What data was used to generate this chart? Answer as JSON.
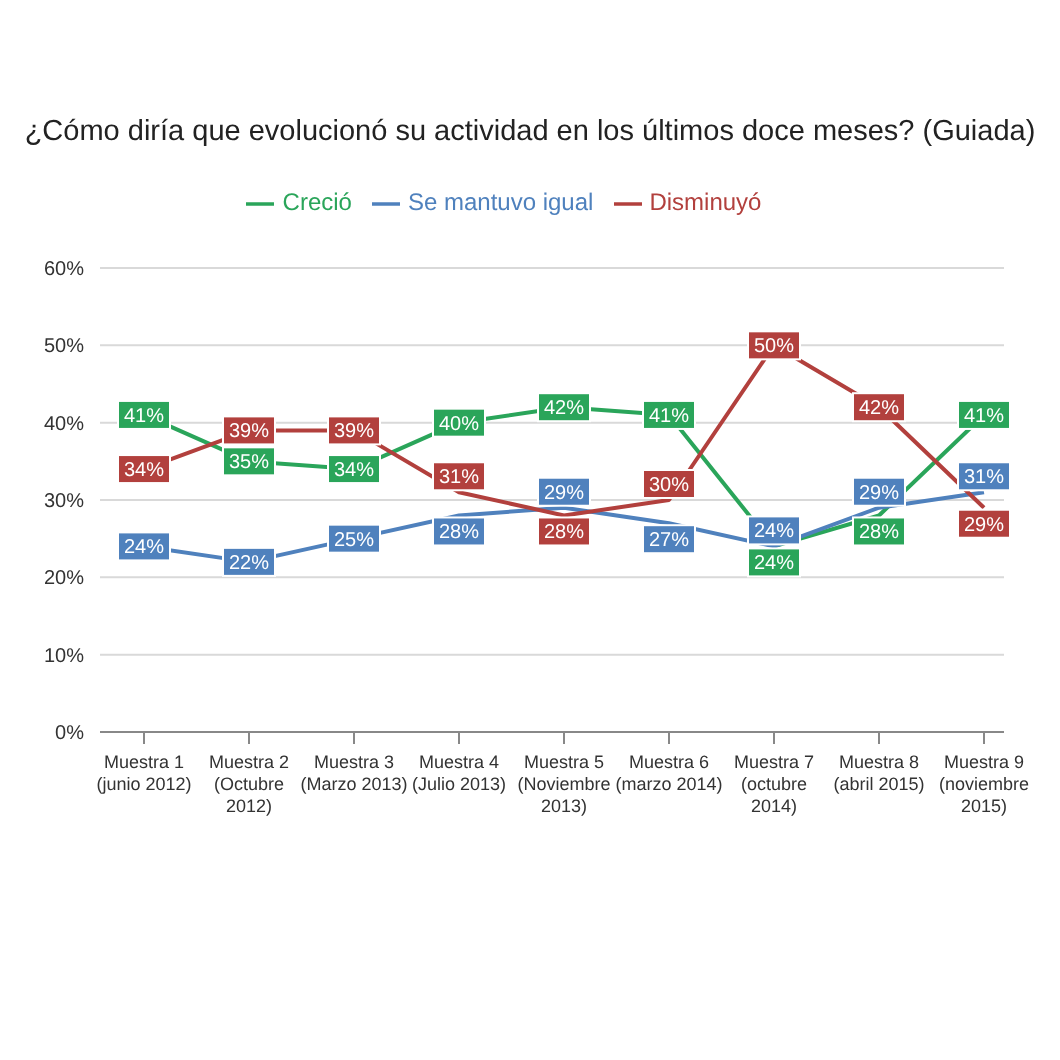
{
  "chart_data": {
    "type": "line",
    "title": "¿Cómo diría que evolucionó su actividad en los últimos doce meses? (Guiada)",
    "categories": [
      "Muestra 1 (junio 2012)",
      "Muestra 2 (Octubre 2012)",
      "Muestra 3 (Marzo 2013)",
      "Muestra 4 (Julio 2013)",
      "Muestra 5 (Noviembre 2013)",
      "Muestra 6 (marzo 2014)",
      "Muestra 7 (octubre 2014)",
      "Muestra 8 (abril 2015)",
      "Muestra 9 (noviembre 2015)"
    ],
    "series": [
      {
        "name": "Creció",
        "color": "#2aa55a",
        "values": [
          41,
          35,
          34,
          40,
          42,
          41,
          24,
          28,
          41
        ],
        "value_labels": [
          "41%",
          "35%",
          "34%",
          "40%",
          "42%",
          "41%",
          "24%",
          "28%",
          "41%"
        ]
      },
      {
        "name": "Se mantuvo igual",
        "color": "#4f81bd",
        "values": [
          24,
          22,
          25,
          28,
          29,
          27,
          24,
          29,
          31
        ],
        "value_labels": [
          "24%",
          "22%",
          "25%",
          "28%",
          "29%",
          "27%",
          "24%",
          "29%",
          "31%"
        ]
      },
      {
        "name": "Disminuyó",
        "color": "#b2403d",
        "values": [
          34,
          39,
          39,
          31,
          28,
          30,
          50,
          42,
          29
        ],
        "value_labels": [
          "34%",
          "39%",
          "39%",
          "31%",
          "28%",
          "30%",
          "50%",
          "42%",
          "29%"
        ]
      }
    ],
    "ylim": [
      0,
      60
    ],
    "yticks": [
      {
        "value": 0,
        "label": "0%"
      },
      {
        "value": 10,
        "label": "10%"
      },
      {
        "value": 20,
        "label": "20%"
      },
      {
        "value": 30,
        "label": "30%"
      },
      {
        "value": 40,
        "label": "40%"
      },
      {
        "value": 50,
        "label": "50%"
      },
      {
        "value": 60,
        "label": "60%"
      }
    ],
    "grid": "y",
    "legend": "top",
    "line_style": "solid"
  }
}
